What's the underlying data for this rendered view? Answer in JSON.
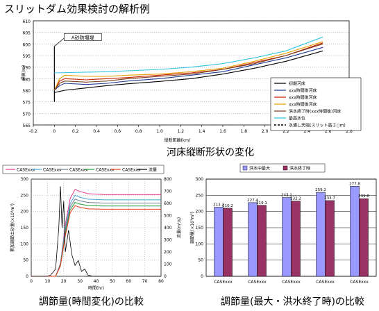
{
  "page_title": "スリットダム効果検討の解析例",
  "captions": {
    "top": "河床縦断形状の変化",
    "bottom_left": "調節量(時間変化)の比較",
    "bottom_right": "調節量(最大・洪水終了時)の比較"
  },
  "chart_data": [
    {
      "type": "line",
      "xlabel": "縦断距離(km)",
      "ylabel": "標高(m)",
      "xlim": [
        -0.2,
        2.8
      ],
      "ylim": [
        565,
        610
      ],
      "x_ticks": [
        "-0.2",
        "0",
        "0.2",
        "0.4",
        "0.6",
        "0.8",
        "1.0",
        "1.2",
        "1.4",
        "1.6",
        "1.8",
        "2.0",
        "2.2",
        "2.4",
        "2.6",
        "2.8"
      ],
      "y_ticks": [
        "565",
        "570",
        "575",
        "580",
        "585",
        "590",
        "595",
        "600",
        "605",
        "610"
      ],
      "annotation": "A砂防堰堤",
      "annotation_x": 0,
      "legend_position": "lower-right",
      "series": [
        {
          "name": "初期河床",
          "color": "#000000",
          "points": [
            [
              0,
              579
            ],
            [
              0.1,
              580
            ],
            [
              0.3,
              581
            ],
            [
              0.5,
              582
            ],
            [
              0.7,
              582.8
            ],
            [
              1.0,
              583.8
            ],
            [
              1.3,
              585
            ],
            [
              1.6,
              587
            ],
            [
              1.9,
              589.5
            ],
            [
              2.2,
              592.5
            ],
            [
              2.55,
              597
            ]
          ]
        },
        {
          "name": "xxx時間後河床",
          "color": "#1f3a93",
          "points": [
            [
              0,
              580
            ],
            [
              0.05,
              582
            ],
            [
              0.1,
              583
            ],
            [
              0.3,
              582.5
            ],
            [
              0.5,
              583
            ],
            [
              0.7,
              584
            ],
            [
              1.0,
              585
            ],
            [
              1.3,
              586.5
            ],
            [
              1.6,
              588
            ],
            [
              1.9,
              591
            ],
            [
              2.2,
              594
            ],
            [
              2.55,
              598.5
            ]
          ]
        },
        {
          "name": "xxx時間後河床",
          "color": "#cc2200",
          "points": [
            [
              0,
              580
            ],
            [
              0.05,
              584
            ],
            [
              0.1,
              585
            ],
            [
              0.3,
              584.5
            ],
            [
              0.5,
              585
            ],
            [
              0.7,
              585.5
            ],
            [
              1.0,
              586.5
            ],
            [
              1.3,
              587.5
            ],
            [
              1.6,
              589
            ],
            [
              1.9,
              592
            ],
            [
              2.2,
              595
            ],
            [
              2.55,
              600.5
            ]
          ]
        },
        {
          "name": "xxx時間後河床",
          "color": "#e8a000",
          "points": [
            [
              0,
              580
            ],
            [
              0.05,
              585
            ],
            [
              0.1,
              586.5
            ],
            [
              0.3,
              586
            ],
            [
              0.5,
              586
            ],
            [
              0.7,
              586.5
            ],
            [
              1.0,
              587
            ],
            [
              1.3,
              588
            ],
            [
              1.6,
              589.5
            ],
            [
              1.9,
              592.5
            ],
            [
              2.2,
              596
            ],
            [
              2.55,
              601
            ]
          ]
        },
        {
          "name": "洪水終了時(xxx時間後)河床",
          "color": "#7a3b1f",
          "points": [
            [
              0,
              580
            ],
            [
              0.05,
              583
            ],
            [
              0.1,
              584
            ],
            [
              0.3,
              583.5
            ],
            [
              0.5,
              584
            ],
            [
              0.7,
              585
            ],
            [
              1.0,
              586
            ],
            [
              1.3,
              587
            ],
            [
              1.6,
              589
            ],
            [
              1.9,
              591.5
            ],
            [
              2.2,
              595
            ],
            [
              2.55,
              600
            ]
          ]
        },
        {
          "name": "最高水位",
          "color": "#33c4e0",
          "points": [
            [
              0,
              587.5
            ],
            [
              0.5,
              588
            ],
            [
              1.0,
              589
            ],
            [
              1.3,
              590
            ],
            [
              1.6,
              591.5
            ],
            [
              1.9,
              594
            ],
            [
              2.2,
              597
            ],
            [
              2.55,
              603
            ]
          ]
        },
        {
          "name": "水通し天端(スリット高さ○m)",
          "color": "#000000",
          "dash": true,
          "points": []
        }
      ]
    },
    {
      "type": "line",
      "xlabel": "時間(hr)",
      "ylabel": "累加調節土砂量(×10³m³)",
      "y2label": "流量(m³/s)",
      "xlim": [
        0,
        80
      ],
      "ylim": [
        0,
        300
      ],
      "y2lim": [
        0,
        800
      ],
      "x_ticks": [
        "0",
        "10",
        "20",
        "30",
        "40",
        "50",
        "60",
        "70",
        "80"
      ],
      "y_ticks": [
        "0",
        "50",
        "100",
        "150",
        "200",
        "250",
        "300"
      ],
      "y2_ticks": [
        "0",
        "100",
        "200",
        "300",
        "400",
        "500",
        "600",
        "700",
        "800"
      ],
      "legend_position": "top",
      "series": [
        {
          "name": "CASExxx",
          "color": "#e63b8a",
          "points": [
            [
              0,
              0
            ],
            [
              15,
              0
            ],
            [
              18,
              40
            ],
            [
              21,
              160
            ],
            [
              24,
              240
            ],
            [
              27,
              268
            ],
            [
              30,
              262
            ],
            [
              35,
              255
            ],
            [
              45,
              252
            ],
            [
              80,
              252
            ]
          ]
        },
        {
          "name": "CASExxx",
          "color": "#4aa3d6",
          "points": [
            [
              0,
              0
            ],
            [
              15,
              0
            ],
            [
              18,
              38
            ],
            [
              21,
              150
            ],
            [
              24,
              225
            ],
            [
              27,
              250
            ],
            [
              30,
              244
            ],
            [
              35,
              238
            ],
            [
              45,
              236
            ],
            [
              80,
              236
            ]
          ]
        },
        {
          "name": "CASExxx",
          "color": "#6e7b8c",
          "points": [
            [
              0,
              0
            ],
            [
              15,
              0
            ],
            [
              18,
              36
            ],
            [
              21,
              140
            ],
            [
              24,
              215
            ],
            [
              27,
              238
            ],
            [
              30,
              233
            ],
            [
              35,
              228
            ],
            [
              45,
              226
            ],
            [
              80,
              226
            ]
          ]
        },
        {
          "name": "CASExxx",
          "color": "#1e9e3a",
          "points": [
            [
              0,
              0
            ],
            [
              15,
              0
            ],
            [
              18,
              34
            ],
            [
              21,
              132
            ],
            [
              24,
              205
            ],
            [
              27,
              228
            ],
            [
              30,
              223
            ],
            [
              35,
              218
            ],
            [
              45,
              217
            ],
            [
              80,
              217
            ]
          ]
        },
        {
          "name": "CASExxx",
          "color": "#e63b1c",
          "points": [
            [
              0,
              0
            ],
            [
              15,
              0
            ],
            [
              18,
              32
            ],
            [
              21,
              125
            ],
            [
              24,
              196
            ],
            [
              27,
              218
            ],
            [
              30,
              213
            ],
            [
              35,
              208
            ],
            [
              45,
              207
            ],
            [
              80,
              207
            ]
          ]
        },
        {
          "name": "流量",
          "color": "#000000",
          "axis": "right",
          "points": [
            [
              0,
              0
            ],
            [
              10,
              0
            ],
            [
              12,
              10
            ],
            [
              15,
              60
            ],
            [
              17,
              400
            ],
            [
              18,
              740
            ],
            [
              19,
              400
            ],
            [
              20,
              620
            ],
            [
              21,
              200
            ],
            [
              23,
              380
            ],
            [
              25,
              180
            ],
            [
              27,
              90
            ],
            [
              29,
              130
            ],
            [
              31,
              40
            ],
            [
              33,
              60
            ],
            [
              35,
              10
            ],
            [
              38,
              0
            ],
            [
              80,
              0
            ]
          ]
        }
      ]
    },
    {
      "type": "bar",
      "ylabel": "調節量(×10³m³)",
      "ylim": [
        0,
        300
      ],
      "y_ticks": [
        "0",
        "50",
        "100",
        "150",
        "200",
        "250",
        "300"
      ],
      "categories": [
        "CASExxx",
        "CASExxx",
        "CASExxx",
        "CASExxx",
        "CASExxx"
      ],
      "legend_position": "top",
      "series": [
        {
          "name": "洪水中最大",
          "color": "#9999ff",
          "values": [
            213.2,
            227.4,
            243.1,
            259.2,
            277.8
          ],
          "labels": [
            "213.2",
            "227.4",
            "243.1",
            "259.2",
            "277.8"
          ]
        },
        {
          "name": "洪水終了時",
          "color": "#993366",
          "values": [
            210.2,
            219.1,
            232.2,
            233.7,
            239.6
          ],
          "labels": [
            "210.2",
            "219.1",
            "232.2",
            "233.7",
            "239.6"
          ]
        }
      ]
    }
  ]
}
